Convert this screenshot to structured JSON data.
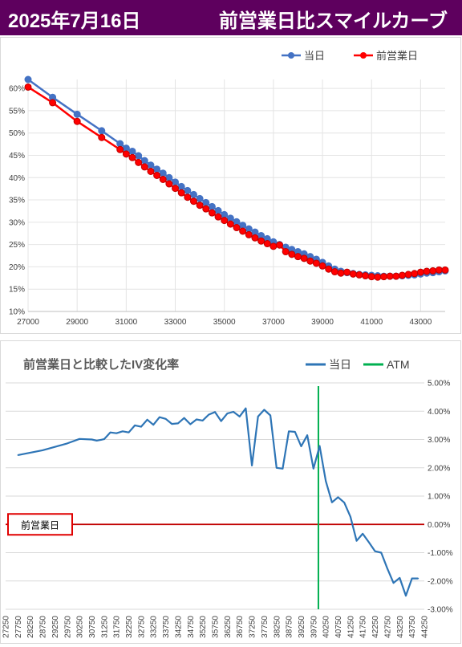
{
  "header": {
    "date": "2025年7月16日",
    "title": "前営業日比スマイルカーブ"
  },
  "chart_data": [
    {
      "type": "line",
      "title": "",
      "xlabel": "",
      "ylabel": "",
      "xlim": [
        27000,
        44000
      ],
      "ylim": [
        10,
        62
      ],
      "x_ticks": [
        "27000",
        "29000",
        "31000",
        "33000",
        "35000",
        "37000",
        "39000",
        "41000",
        "43000"
      ],
      "x_tick_values": [
        27000,
        29000,
        31000,
        33000,
        35000,
        37000,
        39000,
        41000,
        43000
      ],
      "y_ticks": [
        "10%",
        "15%",
        "20%",
        "25%",
        "30%",
        "35%",
        "40%",
        "45%",
        "50%",
        "55%",
        "60%"
      ],
      "y_tick_values": [
        10,
        15,
        20,
        25,
        30,
        35,
        40,
        45,
        50,
        55,
        60
      ],
      "legend_position": "top-right",
      "x": [
        27000,
        28000,
        29000,
        30000,
        30750,
        31000,
        31250,
        31500,
        31750,
        32000,
        32250,
        32500,
        32750,
        33000,
        33250,
        33500,
        33750,
        34000,
        34250,
        34500,
        34750,
        35000,
        35250,
        35500,
        35750,
        36000,
        36250,
        36500,
        36750,
        37000,
        37250,
        37500,
        37750,
        38000,
        38250,
        38500,
        38750,
        39000,
        39250,
        39500,
        39750,
        40000,
        40250,
        40500,
        40750,
        41000,
        41250,
        41500,
        41750,
        42000,
        42250,
        42500,
        42750,
        43000,
        43250,
        43500,
        43750,
        44000
      ],
      "series": [
        {
          "name": "当日",
          "color": "#4472c4",
          "values": [
            62.0,
            58.0,
            54.2,
            50.5,
            47.6,
            46.6,
            45.9,
            44.9,
            43.8,
            42.8,
            41.9,
            41.0,
            40.0,
            39.0,
            38.0,
            37.1,
            36.2,
            35.3,
            34.4,
            33.5,
            32.6,
            31.7,
            30.9,
            30.1,
            29.3,
            28.5,
            27.8,
            27.0,
            26.3,
            25.6,
            25.0,
            24.4,
            23.9,
            23.4,
            22.9,
            22.3,
            21.7,
            21.0,
            20.2,
            19.5,
            19.0,
            18.7,
            18.5,
            18.3,
            18.2,
            18.1,
            18.0,
            17.9,
            17.9,
            17.9,
            18.0,
            18.1,
            18.2,
            18.4,
            18.6,
            18.7,
            18.9,
            19.1
          ]
        },
        {
          "name": "前営業日",
          "color": "#ff0000",
          "values": [
            60.3,
            56.8,
            52.6,
            49.0,
            46.3,
            45.3,
            44.5,
            43.4,
            42.4,
            41.4,
            40.5,
            39.6,
            38.6,
            37.6,
            36.6,
            35.6,
            34.7,
            33.8,
            33.0,
            32.1,
            31.2,
            30.4,
            29.6,
            28.8,
            28.0,
            27.2,
            26.5,
            25.8,
            25.2,
            24.6,
            24.9,
            23.4,
            22.8,
            22.3,
            21.9,
            21.3,
            20.8,
            20.2,
            19.5,
            18.9,
            18.6,
            18.8,
            18.4,
            18.2,
            18.0,
            17.8,
            17.7,
            17.8,
            17.9,
            17.9,
            18.1,
            18.3,
            18.5,
            18.8,
            19.0,
            19.1,
            19.3,
            19.3
          ]
        }
      ]
    },
    {
      "type": "line",
      "title": "前営業日と比較したIV変化率",
      "xlabel": "",
      "ylabel": "",
      "xlim": [
        27250,
        44250
      ],
      "ylim": [
        -3,
        5
      ],
      "x_ticks": [
        "27250",
        "27750",
        "28250",
        "28750",
        "29250",
        "29750",
        "30250",
        "30750",
        "31250",
        "31750",
        "32250",
        "32750",
        "33250",
        "33750",
        "34250",
        "34750",
        "35250",
        "35750",
        "36250",
        "36750",
        "37250",
        "37750",
        "38250",
        "38750",
        "39250",
        "39750",
        "40250",
        "40750",
        "41250",
        "41750",
        "42250",
        "42750",
        "43250",
        "43750",
        "44250"
      ],
      "y_ticks": [
        "5.00%",
        "4.00%",
        "3.00%",
        "2.00%",
        "1.00%",
        "0.00%",
        "-1.00%",
        "-2.00%",
        "-3.00%"
      ],
      "y_tick_values": [
        5,
        4,
        3,
        2,
        1,
        0,
        -1,
        -2,
        -3
      ],
      "y_axis_side": "right",
      "legend_position": "top-right",
      "reference_line": {
        "label": "前営業日",
        "value": 0,
        "color": "#c00000"
      },
      "atm": {
        "name": "ATM",
        "x": 39950,
        "color": "#00b050"
      },
      "x": [
        27750,
        28750,
        29750,
        30250,
        30750,
        30950,
        31250,
        31500,
        31750,
        32000,
        32250,
        32500,
        32750,
        33000,
        33250,
        33500,
        33750,
        34000,
        34250,
        34500,
        34750,
        35000,
        35250,
        35500,
        35750,
        36000,
        36250,
        36500,
        36750,
        37000,
        37250,
        37500,
        37750,
        38000,
        38250,
        38500,
        38750,
        39000,
        39250,
        39500,
        39750,
        40000,
        40250,
        40500,
        40750,
        41000,
        41250,
        41500,
        41750,
        42000,
        42250,
        42500,
        42750,
        43000,
        43250,
        43500,
        43750,
        44000
      ],
      "series": [
        {
          "name": "当日",
          "color": "#2e75b6",
          "values": [
            2.45,
            2.62,
            2.86,
            3.02,
            3.0,
            2.96,
            3.01,
            3.25,
            3.22,
            3.29,
            3.25,
            3.5,
            3.45,
            3.7,
            3.52,
            3.79,
            3.73,
            3.55,
            3.57,
            3.76,
            3.54,
            3.71,
            3.67,
            3.88,
            3.97,
            3.65,
            3.92,
            3.98,
            3.81,
            4.1,
            2.08,
            3.81,
            4.05,
            3.85,
            2.0,
            1.97,
            3.29,
            3.27,
            2.76,
            3.15,
            1.97,
            2.77,
            1.53,
            0.78,
            0.96,
            0.77,
            0.27,
            -0.58,
            -0.33,
            -0.63,
            -0.95,
            -1.0,
            -1.56,
            -2.07,
            -1.89,
            -2.52,
            -1.91,
            -1.91
          ]
        }
      ]
    }
  ]
}
